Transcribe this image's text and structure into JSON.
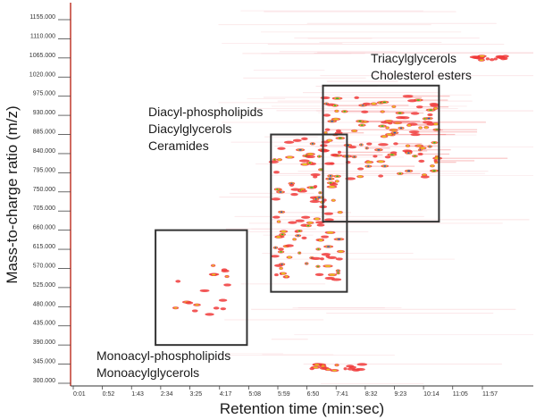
{
  "chart_data": {
    "type": "heatmap",
    "title": "",
    "xlabel": "Retention time (min:sec)",
    "ylabel": "Mass-to-charge ratio (m/z)",
    "x_ticks": [
      "0:01",
      "0:52",
      "1:43",
      "2:34",
      "3:25",
      "4:17",
      "5:08",
      "5:59",
      "6:50",
      "7:41",
      "8:32",
      "9:23",
      "10:14",
      "11:05",
      "11:57"
    ],
    "x_tick_seconds": [
      1,
      52,
      103,
      154,
      205,
      257,
      308,
      359,
      410,
      461,
      512,
      563,
      614,
      665,
      717
    ],
    "xlim_seconds": [
      1,
      776
    ],
    "y_ticks": [
      "1155.000",
      "1110.000",
      "1065.000",
      "1020.000",
      "975.000",
      "930.000",
      "885.000",
      "840.000",
      "795.000",
      "750.000",
      "705.000",
      "660.000",
      "615.000",
      "570.000",
      "525.000",
      "480.000",
      "435.000",
      "390.000",
      "345.000",
      "300.000"
    ],
    "y_tick_values": [
      1155,
      1110,
      1065,
      1020,
      975,
      930,
      885,
      840,
      795,
      750,
      705,
      660,
      615,
      570,
      525,
      480,
      435,
      390,
      345,
      300
    ],
    "ylim": [
      300,
      1190
    ],
    "grid": false,
    "legend": "none",
    "colormap": [
      "#ffffff",
      "#ffd6da",
      "#f03a3a",
      "#e8c020",
      "#3aa838",
      "#3050c0"
    ],
    "regions": [
      {
        "name": "Monoacyl-phospholipids / Monoacylglycerols",
        "x_seconds": [
          145,
          305
        ],
        "mz": [
          390,
          660
        ],
        "labels": [
          "Monoacyl-phospholipids",
          "Monoacylglycerols"
        ],
        "label_position": "below"
      },
      {
        "name": "Diacyl-phospholipids / Diacylglycerols / Ceramides",
        "x_seconds": [
          347,
          480
        ],
        "mz": [
          515,
          885
        ],
        "labels": [
          "Diacyl-phospholipids",
          "Diacylglycerols",
          "Ceramides"
        ],
        "label_position": "upper-left"
      },
      {
        "name": "Triacylglycerols / Cholesterol esters",
        "x_seconds": [
          438,
          641
        ],
        "mz": [
          680,
          1000
        ],
        "labels": [
          "Triacylglycerols",
          "Cholesterol esters"
        ],
        "label_position": "above"
      }
    ],
    "spot_clusters": [
      {
        "name": "monoacyl",
        "x_range_seconds": [
          180,
          275
        ],
        "mz_range": [
          460,
          590
        ],
        "density": "low"
      },
      {
        "name": "diacyl",
        "x_range_seconds": [
          350,
          470
        ],
        "mz_range": [
          540,
          880
        ],
        "density": "high"
      },
      {
        "name": "triacyl",
        "x_range_seconds": [
          440,
          640
        ],
        "mz_range": [
          780,
          975
        ],
        "density": "high"
      },
      {
        "name": "late-low-mass",
        "x_range_seconds": [
          410,
          520
        ],
        "mz_range": [
          330,
          345
        ],
        "density": "low"
      },
      {
        "name": "late-high-mass",
        "x_range_seconds": [
          690,
          760
        ],
        "mz_range": [
          1060,
          1070
        ],
        "density": "low"
      }
    ]
  }
}
